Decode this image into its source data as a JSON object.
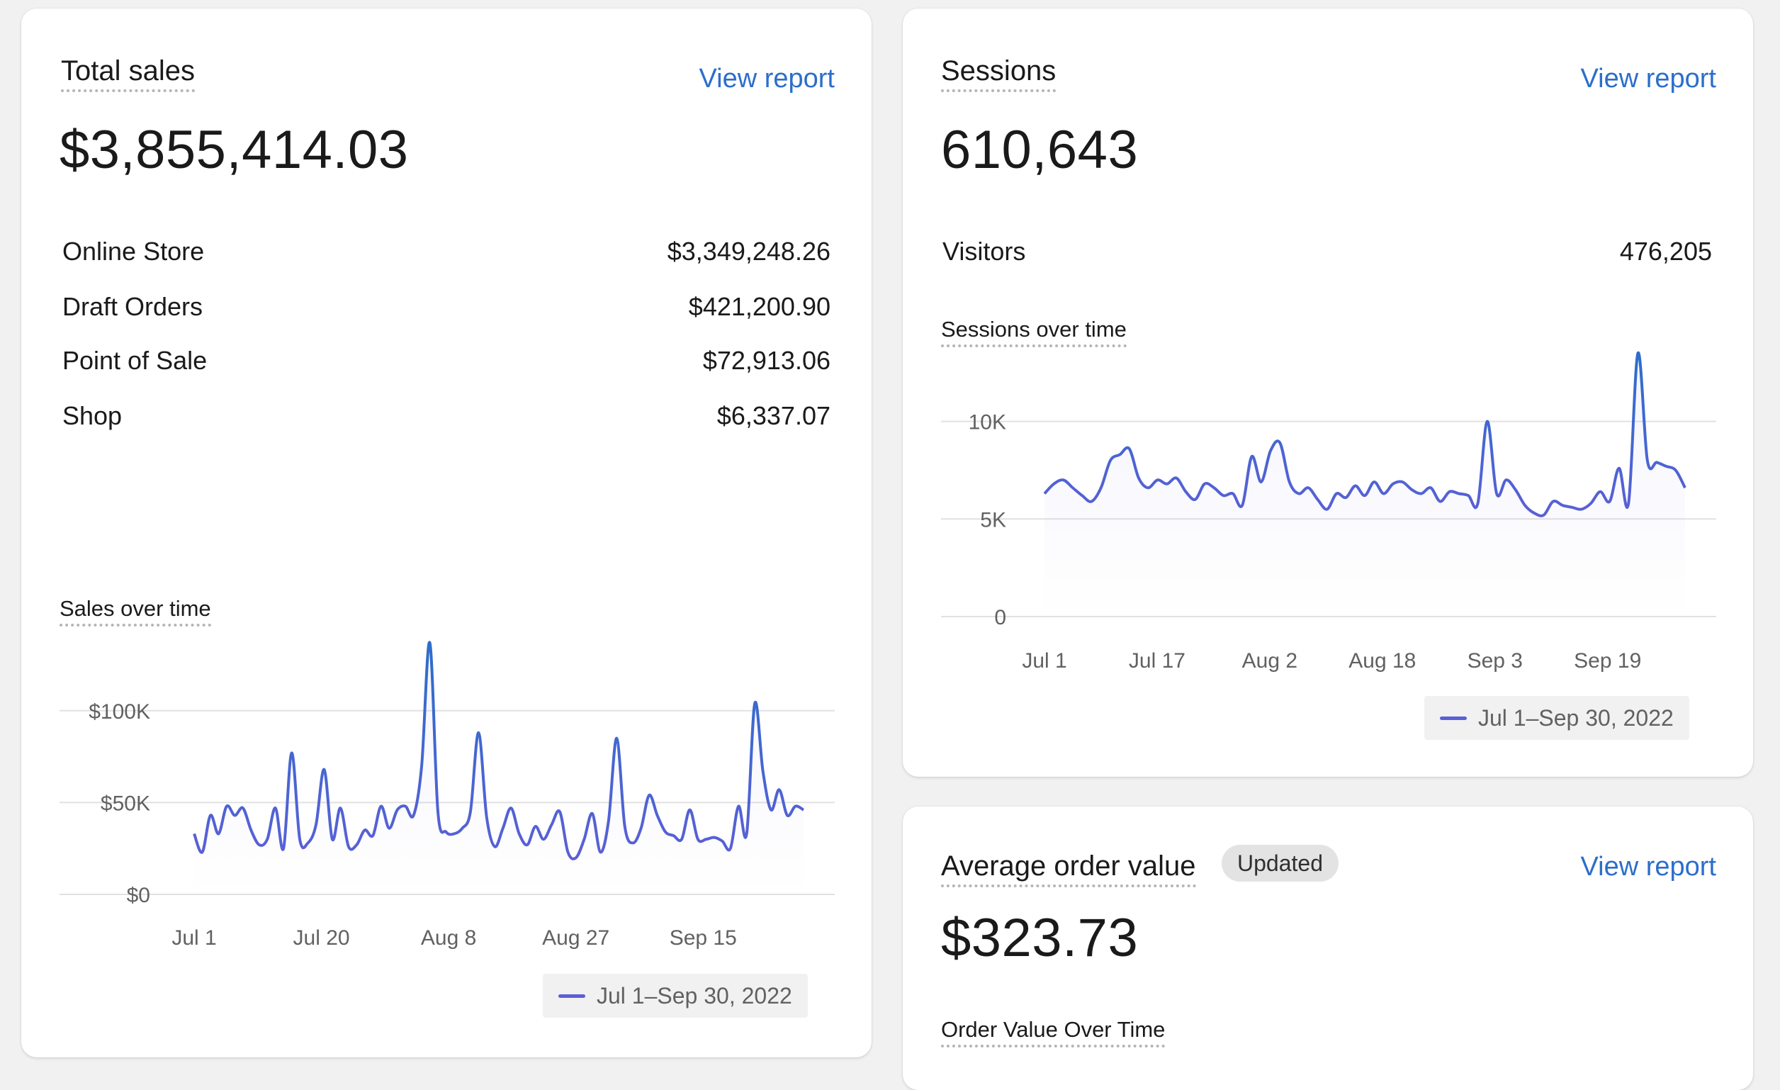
{
  "colors": {
    "link": "#2c6ecb",
    "series_start": "#2c6ecb",
    "series_end": "#5b5fd6",
    "grid": "#e1e1e1"
  },
  "sales_card": {
    "title": "Total sales",
    "view_report": "View report",
    "total": "$3,855,414.03",
    "rows": [
      {
        "label": "Online Store",
        "value": "$3,349,248.26"
      },
      {
        "label": "Draft Orders",
        "value": "$421,200.90"
      },
      {
        "label": "Point of Sale",
        "value": "$72,913.06"
      },
      {
        "label": "Shop",
        "value": "$6,337.07"
      }
    ],
    "chart_title": "Sales over time",
    "legend": "Jul 1–Sep 30, 2022"
  },
  "sessions_card": {
    "title": "Sessions",
    "view_report": "View report",
    "total": "610,643",
    "rows": [
      {
        "label": "Visitors",
        "value": "476,205"
      }
    ],
    "chart_title": "Sessions over time",
    "legend": "Jul 1–Sep 30, 2022"
  },
  "aov_card": {
    "title": "Average order value",
    "badge": "Updated",
    "view_report": "View report",
    "total": "$323.73",
    "chart_title": "Order Value Over Time"
  },
  "chart_data": [
    {
      "type": "line",
      "title": "Sales over time",
      "ylim": [
        0,
        125000
      ],
      "y_ticks": [
        {
          "value": 0,
          "label": "$0"
        },
        {
          "value": 50000,
          "label": "$50K"
        },
        {
          "value": 100000,
          "label": "$100K"
        }
      ],
      "x_tick_labels": [
        {
          "day": 0,
          "label": "Jul 1"
        },
        {
          "day": 19,
          "label": "Jul 20"
        },
        {
          "day": 38,
          "label": "Aug 8"
        },
        {
          "day": 57,
          "label": "Aug 27"
        },
        {
          "day": 76,
          "label": "Sep 15"
        }
      ],
      "grid": true,
      "legend_position": "bottom-right",
      "series": [
        {
          "name": "Jul 1–Sep 30, 2022",
          "values": [
            33000,
            23000,
            43000,
            33000,
            48000,
            43000,
            47000,
            35000,
            27000,
            30000,
            47000,
            25000,
            77000,
            30000,
            28000,
            38000,
            68000,
            30000,
            47000,
            26000,
            27000,
            35000,
            32000,
            48000,
            36000,
            46000,
            48000,
            43000,
            70000,
            137000,
            45000,
            34000,
            33000,
            36000,
            45000,
            88000,
            42000,
            26000,
            36000,
            47000,
            33000,
            27000,
            37000,
            30000,
            38000,
            45000,
            23000,
            20000,
            30000,
            44000,
            23000,
            40000,
            85000,
            37000,
            28000,
            36000,
            54000,
            43000,
            34000,
            32000,
            30000,
            46000,
            30000,
            30000,
            31000,
            29000,
            25000,
            48000,
            33000,
            104000,
            67000,
            46000,
            57000,
            43000,
            48000,
            46000
          ]
        }
      ]
    },
    {
      "type": "line",
      "title": "Sessions over time",
      "ylim": [
        0,
        13000
      ],
      "y_ticks": [
        {
          "value": 0,
          "label": "0"
        },
        {
          "value": 5000,
          "label": "5K"
        },
        {
          "value": 10000,
          "label": "10K"
        }
      ],
      "x_tick_labels": [
        {
          "day": 0,
          "label": "Jul 1"
        },
        {
          "day": 16,
          "label": "Jul 17"
        },
        {
          "day": 32,
          "label": "Aug 2"
        },
        {
          "day": 48,
          "label": "Aug 18"
        },
        {
          "day": 64,
          "label": "Sep 3"
        },
        {
          "day": 80,
          "label": "Sep 19"
        }
      ],
      "grid": true,
      "legend_position": "bottom-right",
      "series": [
        {
          "name": "Jul 1–Sep 30, 2022",
          "values": [
            6300,
            6800,
            7000,
            6600,
            6200,
            5900,
            6600,
            8000,
            8300,
            8600,
            7100,
            6600,
            7000,
            6800,
            7100,
            6400,
            6000,
            6800,
            6600,
            6200,
            6300,
            5700,
            8200,
            6900,
            8500,
            8900,
            6900,
            6300,
            6600,
            6000,
            5500,
            6300,
            6100,
            6700,
            6200,
            6900,
            6300,
            6800,
            6900,
            6500,
            6300,
            6600,
            5900,
            6400,
            6300,
            6200,
            5800,
            10000,
            6300,
            7000,
            6500,
            5700,
            5300,
            5200,
            5900,
            5700,
            5600,
            5500,
            5800,
            6400,
            5900,
            7600,
            5800,
            13500,
            8000,
            7900,
            7700,
            7500,
            6600
          ]
        }
      ]
    }
  ]
}
